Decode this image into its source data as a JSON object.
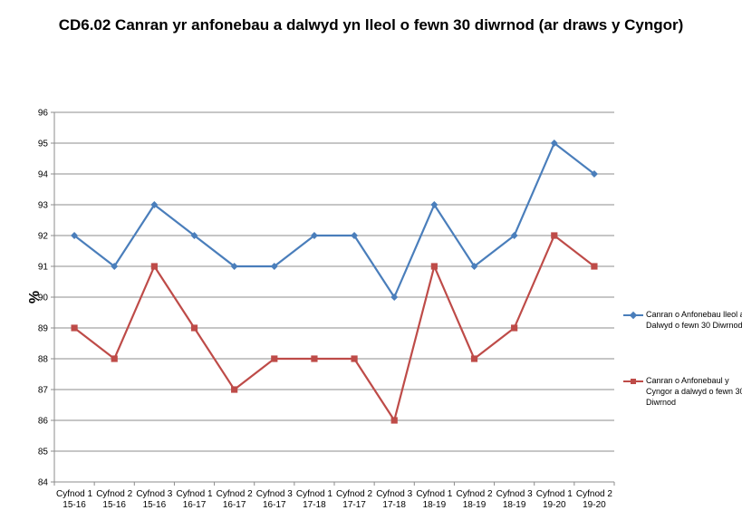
{
  "chart_data": {
    "type": "line",
    "title": "CD6.02 Canran yr anfonebau a dalwyd yn lleol o fewn 30 diwrnod (ar draws y Cyngor)",
    "ylabel": "%",
    "xlabel": "",
    "ylim": [
      84,
      96
    ],
    "yticks": [
      84,
      85,
      86,
      87,
      88,
      89,
      90,
      91,
      92,
      93,
      94,
      95,
      96
    ],
    "grid": true,
    "legend_position": "right",
    "categories": [
      [
        "Cyfnod 1",
        "15-16"
      ],
      [
        "Cyfnod 2",
        "15-16"
      ],
      [
        "Cyfnod 3",
        "15-16"
      ],
      [
        "Cyfnod 1",
        "16-17"
      ],
      [
        "Cyfnod 2",
        "16-17"
      ],
      [
        "Cyfnod 3",
        "16-17"
      ],
      [
        "Cyfnod 1",
        "17-18"
      ],
      [
        "Cyfnod 2",
        "17-17"
      ],
      [
        "Cyfnod 3",
        "17-18"
      ],
      [
        "Cyfnod 1",
        "18-19"
      ],
      [
        "Cyfnod 2",
        "18-19"
      ],
      [
        "Cyfnod 3",
        "18-19"
      ],
      [
        "Cyfnod 1",
        "19-20"
      ],
      [
        "Cyfnod 2",
        "19-20"
      ]
    ],
    "series": [
      {
        "name": "Canran o Anfonebau lleol a Dalwyd o fewn 30 Diwrnod",
        "color": "#4A7EBB",
        "marker": "diamond",
        "values": [
          92,
          91,
          93,
          92,
          91,
          91,
          92,
          92,
          90,
          93,
          91,
          92,
          95,
          94
        ]
      },
      {
        "name": "Canran o Anfonebaul y Cyngor a dalwyd o fewn 30 Diwrnod",
        "color": "#BE4B48",
        "marker": "square",
        "values": [
          89,
          88,
          91,
          89,
          87,
          88,
          88,
          88,
          86,
          91,
          88,
          89,
          92,
          91
        ]
      }
    ]
  }
}
